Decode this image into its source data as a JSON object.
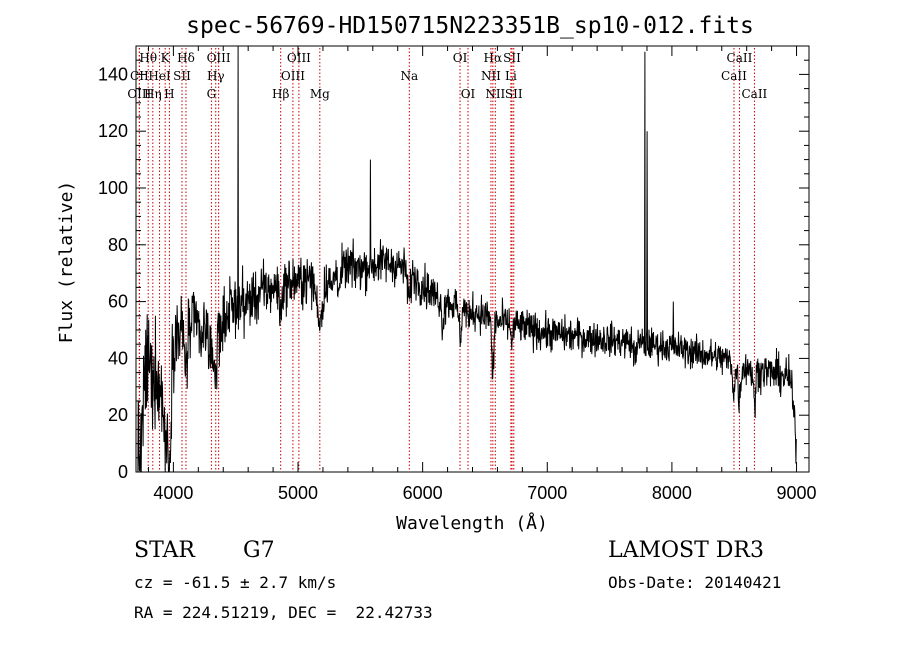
{
  "chart_data": {
    "type": "line",
    "title": "spec-56769-HD150715N223351B_sp10-012.fits",
    "xlabel": "Wavelength (Å)",
    "ylabel": "Flux (relative)",
    "xlim": [
      3700,
      9100
    ],
    "ylim": [
      0,
      150
    ],
    "xticks": [
      4000,
      5000,
      6000,
      7000,
      8000,
      9000
    ],
    "xtick_labels": [
      "4000",
      "5000",
      "6000",
      "7000",
      "8000",
      "9000"
    ],
    "yticks": [
      0,
      20,
      40,
      60,
      80,
      100,
      120,
      140
    ],
    "ytick_labels": [
      "0",
      "20",
      "40",
      "60",
      "80",
      "100",
      "120",
      "140"
    ],
    "grid": false,
    "line_color": "#000000",
    "marker_color": "#cc0000",
    "continuum": [
      [
        3700,
        2
      ],
      [
        3720,
        45
      ],
      [
        3760,
        48
      ],
      [
        3800,
        42
      ],
      [
        3850,
        45
      ],
      [
        3900,
        42
      ],
      [
        3960,
        40
      ],
      [
        4000,
        48
      ],
      [
        4100,
        50
      ],
      [
        4200,
        52
      ],
      [
        4300,
        50
      ],
      [
        4400,
        55
      ],
      [
        4500,
        58
      ],
      [
        4600,
        60
      ],
      [
        4700,
        63
      ],
      [
        4800,
        65
      ],
      [
        4900,
        66
      ],
      [
        5000,
        67
      ],
      [
        5100,
        68
      ],
      [
        5200,
        68
      ],
      [
        5300,
        70
      ],
      [
        5400,
        72
      ],
      [
        5500,
        72
      ],
      [
        5600,
        73
      ],
      [
        5700,
        74
      ],
      [
        5800,
        73
      ],
      [
        5900,
        70
      ],
      [
        6000,
        66
      ],
      [
        6100,
        62
      ],
      [
        6200,
        60
      ],
      [
        6300,
        58
      ],
      [
        6400,
        57
      ],
      [
        6500,
        55
      ],
      [
        6600,
        53
      ],
      [
        6700,
        52
      ],
      [
        6800,
        51
      ],
      [
        6900,
        50
      ],
      [
        7000,
        49
      ],
      [
        7200,
        48
      ],
      [
        7400,
        47
      ],
      [
        7600,
        46
      ],
      [
        7800,
        45
      ],
      [
        8000,
        44
      ],
      [
        8200,
        42
      ],
      [
        8400,
        40
      ],
      [
        8600,
        37
      ],
      [
        8800,
        35
      ],
      [
        8950,
        33
      ],
      [
        9000,
        10
      ]
    ],
    "features": [
      [
        3730,
        -40,
        30
      ],
      [
        3835,
        -15,
        15
      ],
      [
        3889,
        -15,
        15
      ],
      [
        3934,
        -30,
        14
      ],
      [
        3968,
        -40,
        12
      ],
      [
        4101,
        -12,
        12
      ],
      [
        4227,
        -8,
        10
      ],
      [
        4305,
        -15,
        12
      ],
      [
        4340,
        -18,
        10
      ],
      [
        4383,
        -8,
        8
      ],
      [
        4861,
        -10,
        10
      ],
      [
        5175,
        -14,
        25
      ],
      [
        5270,
        -6,
        10
      ],
      [
        5335,
        -5,
        10
      ],
      [
        5890,
        -10,
        10
      ],
      [
        6160,
        -8,
        10
      ],
      [
        6300,
        -10,
        10
      ],
      [
        6370,
        -5,
        8
      ],
      [
        6563,
        -20,
        8
      ],
      [
        6717,
        -6,
        8
      ],
      [
        7700,
        -5,
        10
      ],
      [
        8498,
        -10,
        10
      ],
      [
        8542,
        -12,
        10
      ],
      [
        8662,
        -12,
        10
      ]
    ],
    "spikes": [
      [
        4520,
        150
      ],
      [
        5582,
        110
      ],
      [
        7782,
        148
      ],
      [
        7800,
        120
      ],
      [
        8010,
        60
      ]
    ],
    "noise": [
      [
        3700,
        15
      ],
      [
        4000,
        10
      ],
      [
        4400,
        8
      ],
      [
        5000,
        6
      ],
      [
        6000,
        5
      ],
      [
        7000,
        4.5
      ],
      [
        8000,
        4
      ],
      [
        9000,
        5
      ]
    ],
    "line_markers": [
      {
        "label": "Hθ",
        "x": 3798,
        "row": 0
      },
      {
        "label": "K",
        "x": 3934,
        "row": 0
      },
      {
        "label": "Hδ",
        "x": 4101,
        "row": 0
      },
      {
        "label": "OIII",
        "x": 4363,
        "row": 0
      },
      {
        "label": "OIII",
        "x": 5007,
        "row": 0
      },
      {
        "label": "OI",
        "x": 6300,
        "row": 0
      },
      {
        "label": "Hα",
        "x": 6563,
        "row": 0
      },
      {
        "label": "SII",
        "x": 6717,
        "row": 0
      },
      {
        "label": "CaII",
        "x": 8542,
        "row": 0
      },
      {
        "label": "CII",
        "x": 3727,
        "row": 1
      },
      {
        "label": "HeI",
        "x": 3889,
        "row": 1
      },
      {
        "label": "SII",
        "x": 4069,
        "row": 1
      },
      {
        "label": "Hγ",
        "x": 4340,
        "row": 1
      },
      {
        "label": "OIII",
        "x": 4959,
        "row": 1
      },
      {
        "label": "Na",
        "x": 5893,
        "row": 1
      },
      {
        "label": "NII",
        "x": 6548,
        "row": 1
      },
      {
        "label": "Li",
        "x": 6708,
        "row": 1
      },
      {
        "label": "CaII",
        "x": 8498,
        "row": 1
      },
      {
        "label": "OIII",
        "x": 3727,
        "row": 2
      },
      {
        "label": "Hη",
        "x": 3835,
        "row": 2
      },
      {
        "label": "H",
        "x": 3968,
        "row": 2
      },
      {
        "label": "G",
        "x": 4305,
        "row": 2
      },
      {
        "label": "Hβ",
        "x": 4861,
        "row": 2
      },
      {
        "label": "Mg",
        "x": 5175,
        "row": 2
      },
      {
        "label": "OI",
        "x": 6364,
        "row": 2
      },
      {
        "label": "NII",
        "x": 6583,
        "row": 2
      },
      {
        "label": "SII",
        "x": 6731,
        "row": 2
      },
      {
        "label": "CaII",
        "x": 8662,
        "row": 2
      }
    ]
  },
  "info": {
    "object_class": "STAR",
    "subclass": "G7",
    "survey": "LAMOST DR3",
    "redshift": "cz = -61.5 ± 2.7 km/s",
    "obs_date": "Obs-Date: 20140421",
    "coords": "RA = 224.51219, DEC =  22.42733"
  }
}
